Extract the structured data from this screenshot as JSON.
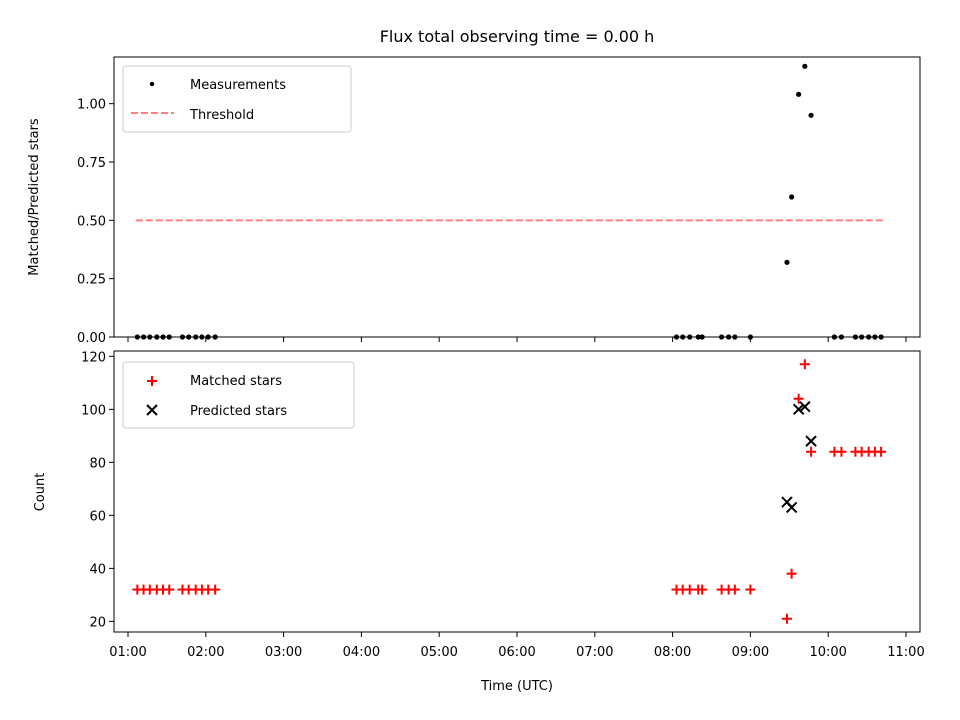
{
  "chart_data": [
    {
      "type": "scatter",
      "title": "Flux total observing time = 0.00 h",
      "xlabel": "",
      "ylabel": "Matched/Predicted stars",
      "xlim": [
        0.82,
        11.18
      ],
      "ylim": [
        0.0,
        1.2
      ],
      "yticks": [
        0.0,
        0.25,
        0.5,
        0.75,
        1.0
      ],
      "ytick_labels": [
        "0.00",
        "0.25",
        "0.50",
        "0.75",
        "1.00"
      ],
      "legend_position": "top-left",
      "series": [
        {
          "name": "Measurements",
          "marker": "dot",
          "color": "#000000",
          "x": [
            1.12,
            1.2,
            1.28,
            1.37,
            1.45,
            1.53,
            1.7,
            1.78,
            1.87,
            1.95,
            2.03,
            2.12,
            8.05,
            8.13,
            8.22,
            8.33,
            8.38,
            8.63,
            8.72,
            8.8,
            9.0,
            9.47,
            9.53,
            9.62,
            9.7,
            9.78,
            10.08,
            10.17,
            10.35,
            10.43,
            10.52,
            10.6,
            10.68
          ],
          "y": [
            0,
            0,
            0,
            0,
            0,
            0,
            0,
            0,
            0,
            0,
            0,
            0,
            0,
            0,
            0,
            0,
            0,
            0,
            0,
            0,
            0,
            0.32,
            0.6,
            1.04,
            1.16,
            0.95,
            0,
            0,
            0,
            0,
            0,
            0,
            0
          ]
        },
        {
          "name": "Threshold",
          "line": "dashed",
          "color": "#ff7f7f",
          "x": [
            1.1,
            10.7
          ],
          "y": [
            0.5,
            0.5
          ]
        }
      ]
    },
    {
      "type": "scatter",
      "title": "",
      "xlabel": "Time (UTC)",
      "ylabel": "Count",
      "xlim": [
        0.82,
        11.18
      ],
      "ylim": [
        16,
        122
      ],
      "xticks": [
        1,
        2,
        3,
        4,
        5,
        6,
        7,
        8,
        9,
        10,
        11
      ],
      "xtick_labels": [
        "01:00",
        "02:00",
        "03:00",
        "04:00",
        "05:00",
        "06:00",
        "07:00",
        "08:00",
        "09:00",
        "10:00",
        "11:00"
      ],
      "yticks": [
        20,
        40,
        60,
        80,
        100,
        120
      ],
      "ytick_labels": [
        "20",
        "40",
        "60",
        "80",
        "100",
        "120"
      ],
      "legend_position": "top-left",
      "series": [
        {
          "name": "Matched stars",
          "marker": "plus",
          "color": "#ff0000",
          "x": [
            1.12,
            1.2,
            1.28,
            1.37,
            1.45,
            1.53,
            1.7,
            1.78,
            1.87,
            1.95,
            2.03,
            2.12,
            8.05,
            8.13,
            8.22,
            8.33,
            8.38,
            8.63,
            8.72,
            8.8,
            9.0,
            9.47,
            9.53,
            9.62,
            9.7,
            9.78,
            10.08,
            10.17,
            10.35,
            10.43,
            10.52,
            10.6,
            10.68
          ],
          "y": [
            32,
            32,
            32,
            32,
            32,
            32,
            32,
            32,
            32,
            32,
            32,
            32,
            32,
            32,
            32,
            32,
            32,
            32,
            32,
            32,
            32,
            21,
            38,
            104,
            117,
            84,
            84,
            84,
            84,
            84,
            84,
            84,
            84
          ]
        },
        {
          "name": "Predicted stars",
          "marker": "x",
          "color": "#000000",
          "x": [
            9.47,
            9.53,
            9.62,
            9.7,
            9.78
          ],
          "y": [
            65,
            63,
            100,
            101,
            88
          ]
        }
      ]
    }
  ]
}
